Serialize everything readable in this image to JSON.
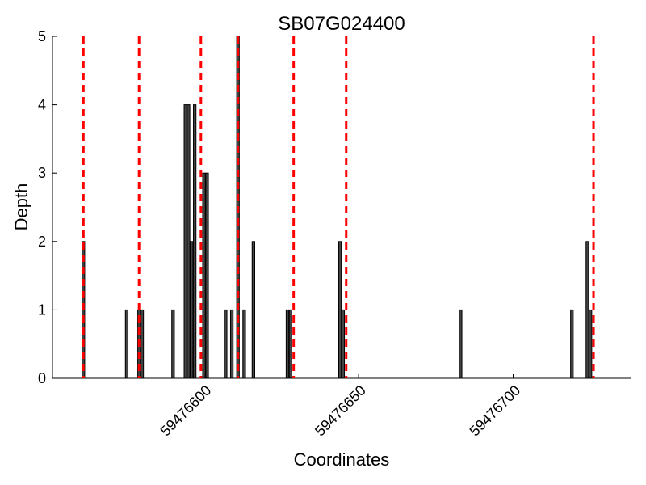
{
  "chart_data": {
    "type": "bar",
    "title": "SB07G024400",
    "xlabel": "Coordinates",
    "ylabel": "Depth",
    "ylim": [
      0,
      5
    ],
    "xlim": [
      59476551,
      59476738
    ],
    "yticks": [
      0,
      1,
      2,
      3,
      4,
      5
    ],
    "xticks": [
      59476600,
      59476650,
      59476700
    ],
    "bar_color": "#444444",
    "vline_color": "#ff0000",
    "series": [
      {
        "values": [
          {
            "x": 59476561,
            "y": 2
          },
          {
            "x": 59476575,
            "y": 1
          },
          {
            "x": 59476579,
            "y": 1
          },
          {
            "x": 59476580,
            "y": 1
          },
          {
            "x": 59476590,
            "y": 1
          },
          {
            "x": 59476594,
            "y": 4
          },
          {
            "x": 59476595,
            "y": 4
          },
          {
            "x": 59476596,
            "y": 2
          },
          {
            "x": 59476597,
            "y": 4
          },
          {
            "x": 59476600,
            "y": 3
          },
          {
            "x": 59476601,
            "y": 3
          },
          {
            "x": 59476607,
            "y": 1
          },
          {
            "x": 59476609,
            "y": 1
          },
          {
            "x": 59476611,
            "y": 5
          },
          {
            "x": 59476613,
            "y": 1
          },
          {
            "x": 59476616,
            "y": 2
          },
          {
            "x": 59476627,
            "y": 1
          },
          {
            "x": 59476628,
            "y": 1
          },
          {
            "x": 59476644,
            "y": 2
          },
          {
            "x": 59476645,
            "y": 1
          },
          {
            "x": 59476683,
            "y": 1
          },
          {
            "x": 59476719,
            "y": 1
          },
          {
            "x": 59476724,
            "y": 2
          },
          {
            "x": 59476725,
            "y": 1
          }
        ]
      }
    ],
    "vlines": [
      59476561,
      59476579,
      59476599,
      59476611,
      59476629,
      59476646,
      59476726
    ]
  }
}
